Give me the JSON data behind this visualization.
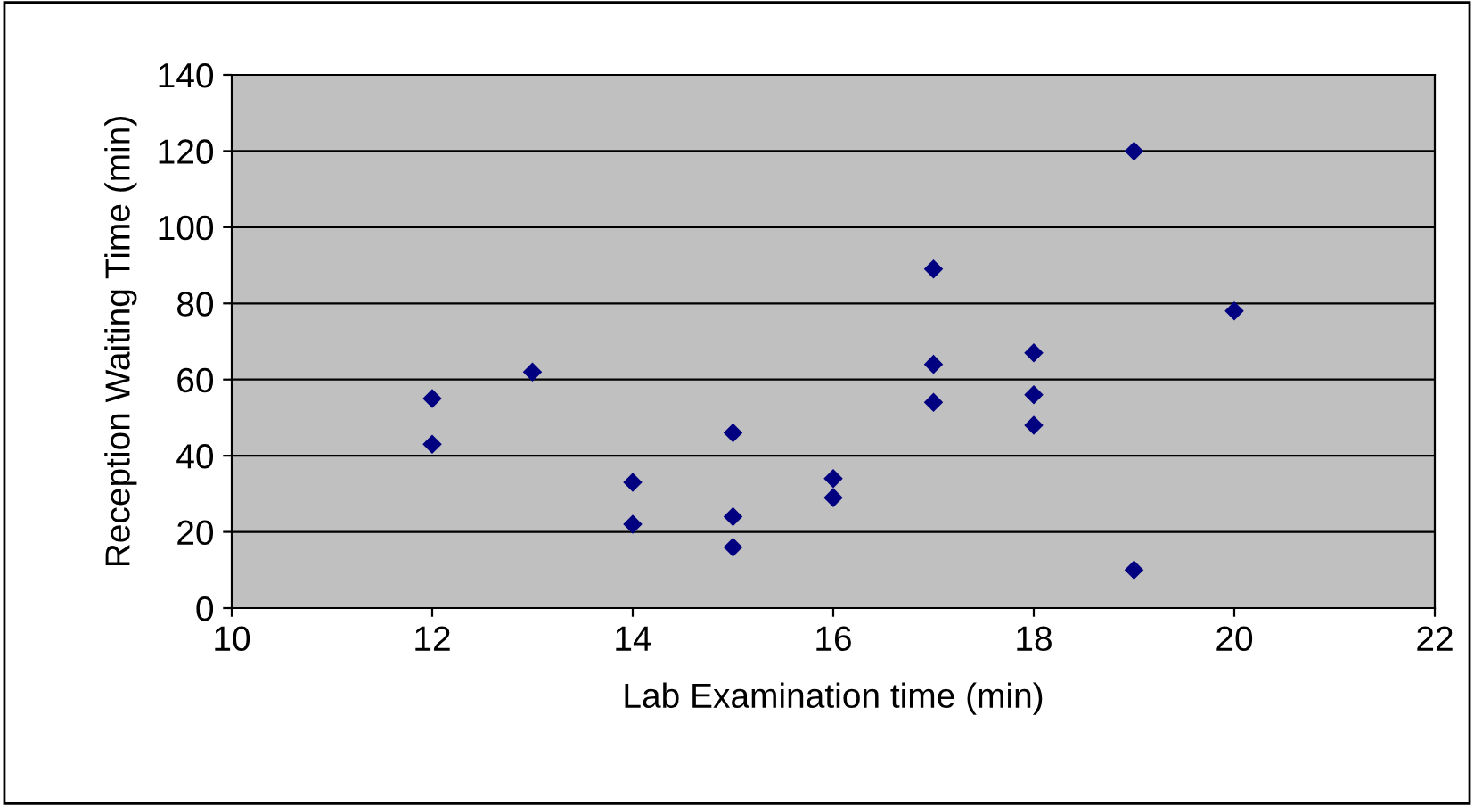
{
  "chart_data": {
    "type": "scatter",
    "xlabel": "Lab Examination time (min)",
    "ylabel": "Reception Waiting Time (min)",
    "x": [
      12,
      12,
      13,
      14,
      14,
      15,
      15,
      15,
      16,
      16,
      17,
      17,
      17,
      18,
      18,
      18,
      19,
      19,
      20
    ],
    "values": [
      55,
      43,
      62,
      33,
      22,
      46,
      24,
      16,
      34,
      29,
      89,
      64,
      54,
      67,
      56,
      48,
      120,
      10,
      78
    ],
    "color": "#000080",
    "marker": "diamond",
    "xlim": [
      10,
      22
    ],
    "xticks": [
      10,
      12,
      14,
      16,
      18,
      20,
      22
    ],
    "ylim": [
      0,
      140
    ],
    "yticks": [
      0,
      20,
      40,
      60,
      80,
      100,
      120,
      140
    ],
    "grid": "y"
  }
}
